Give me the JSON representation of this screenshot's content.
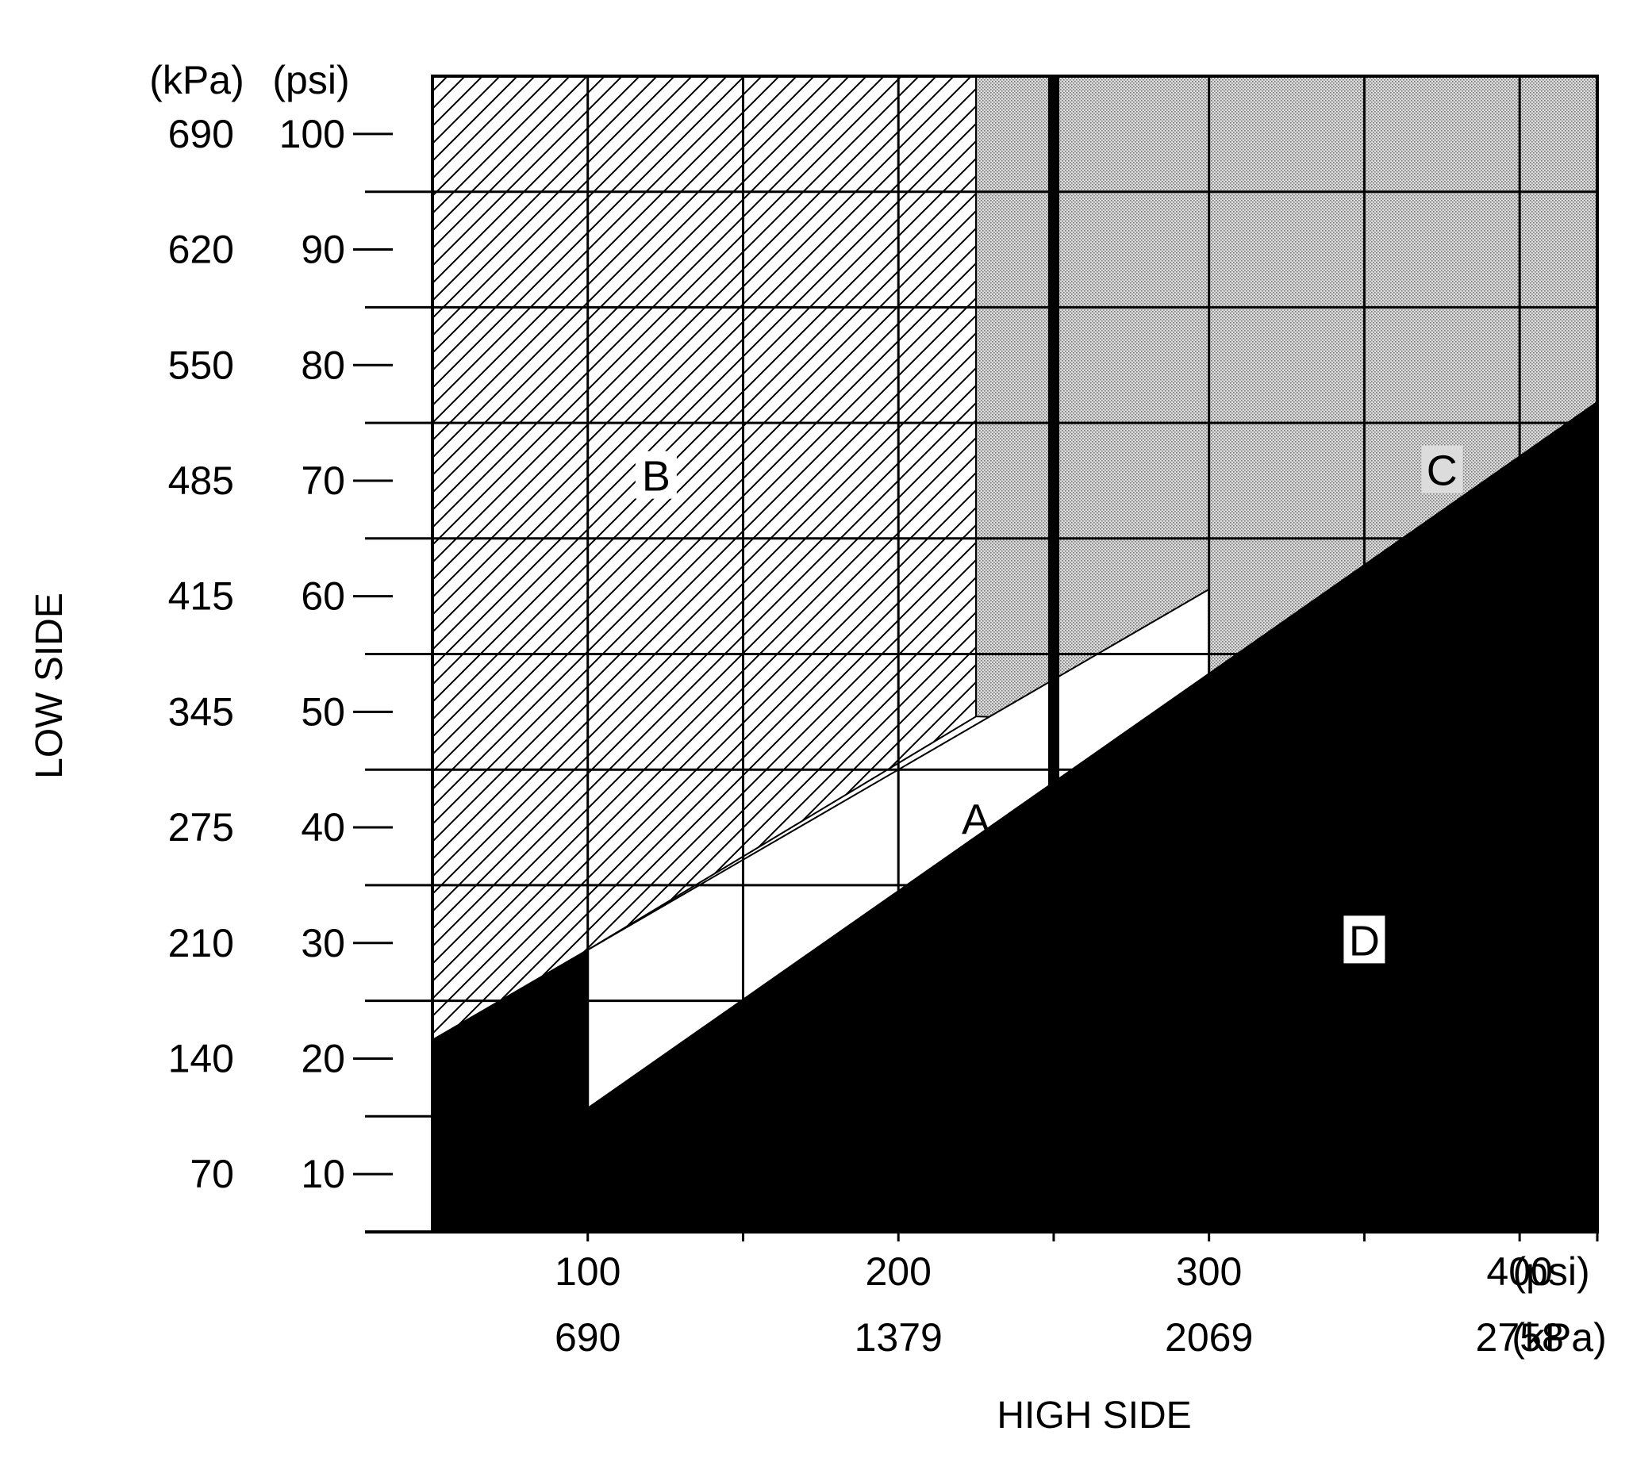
{
  "chart_data": {
    "type": "area",
    "x_axis": {
      "title": "HIGH SIDE",
      "range_psi": [
        50,
        425
      ],
      "unit_primary": "(psi)",
      "unit_secondary": "(kPa)",
      "ticks": [
        {
          "psi": 100,
          "kpa": "690"
        },
        {
          "psi": 200,
          "kpa": "1379"
        },
        {
          "psi": 300,
          "kpa": "2069"
        },
        {
          "psi": 400,
          "kpa": "2758"
        }
      ],
      "minor_ticks_psi": [
        150,
        250,
        350,
        425
      ]
    },
    "y_axis": {
      "title": "LOW SIDE",
      "range_psi": [
        5,
        105
      ],
      "unit_primary": "(psi)",
      "unit_secondary": "(kPa)",
      "ticks": [
        {
          "psi": 10,
          "kpa": "70"
        },
        {
          "psi": 20,
          "kpa": "140"
        },
        {
          "psi": 30,
          "kpa": "210"
        },
        {
          "psi": 40,
          "kpa": "275"
        },
        {
          "psi": 50,
          "kpa": "345"
        },
        {
          "psi": 60,
          "kpa": "415"
        },
        {
          "psi": 70,
          "kpa": "485"
        },
        {
          "psi": 80,
          "kpa": "550"
        },
        {
          "psi": 90,
          "kpa": "620"
        },
        {
          "psi": 100,
          "kpa": "690"
        }
      ],
      "gridlines_psi": [
        15,
        25,
        35,
        45,
        55,
        65,
        75,
        85,
        95
      ],
      "minor_ticks_psi": [
        5
      ]
    },
    "grid_x_psi": [
      100,
      150,
      200,
      250,
      300,
      350,
      400
    ],
    "emphasized_line_x_psi": 250,
    "regions": [
      {
        "label": "B",
        "fill": "hatched",
        "polygon_psi": [
          [
            50,
            105
          ],
          [
            225,
            105
          ],
          [
            225,
            49.6
          ],
          [
            100,
            29.4
          ],
          [
            50,
            21.6
          ]
        ],
        "label_at_psi": [
          122,
          70.5
        ]
      },
      {
        "label": "C",
        "fill": "dotted",
        "polygon_psi": [
          [
            225,
            105
          ],
          [
            425,
            105
          ],
          [
            425,
            76.8
          ],
          [
            300,
            49
          ],
          [
            225,
            49.6
          ]
        ],
        "label_at_psi": [
          375,
          71
        ]
      },
      {
        "label": "A",
        "fill": "white",
        "polygon_psi": [
          [
            100,
            29.4
          ],
          [
            300,
            60.6
          ],
          [
            300,
            49
          ],
          [
            100,
            15.7
          ]
        ],
        "label_at_psi": [
          225,
          40.8
        ]
      },
      {
        "label": "D",
        "fill": "black",
        "polygon_psi": [
          [
            50,
            5
          ],
          [
            50,
            21.6
          ],
          [
            100,
            29.4
          ],
          [
            100,
            15.7
          ],
          [
            425,
            76.8
          ],
          [
            425,
            5
          ]
        ],
        "label_at_psi": [
          350,
          30.3
        ]
      }
    ],
    "colors": {
      "line": "#000000",
      "dotted": "#c8c8c8",
      "background": "#ffffff"
    }
  }
}
